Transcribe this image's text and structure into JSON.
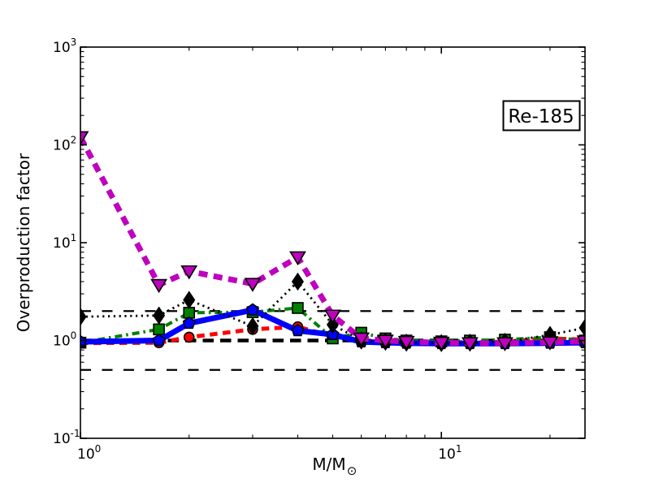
{
  "chart_data": {
    "type": "line",
    "title": "",
    "xlabel": "M/M",
    "xlabel_subscript": "⊙",
    "ylabel": "Overproduction factor",
    "xscale": "log",
    "yscale": "log",
    "xlim": [
      1,
      25
    ],
    "ylim": [
      0.1,
      1000
    ],
    "grid": false,
    "legend": "none",
    "annotation": {
      "label": "Re-185"
    },
    "x_ticks": [
      {
        "label": "10^0",
        "value": 1
      },
      {
        "label": "10^1",
        "value": 10
      }
    ],
    "y_ticks": [
      {
        "label": "10^3",
        "value": 1000
      },
      {
        "label": "10^2",
        "value": 100
      },
      {
        "label": "10^1",
        "value": 10
      },
      {
        "label": "10^0",
        "value": 1
      },
      {
        "label": "10^-1",
        "value": 0.1
      }
    ],
    "x": [
      1,
      1.65,
      2,
      3,
      4,
      5,
      6,
      7,
      8,
      10,
      12,
      15,
      20,
      25
    ],
    "series": [
      {
        "name": "red-dashed-circles",
        "color": "#ff0000",
        "linestyle": "dashed",
        "linewidth": 5,
        "dash": "9.5 6.5",
        "marker": "circle",
        "marker_size": 6,
        "values": [
          0.94,
          0.95,
          1.08,
          1.3,
          1.38,
          1.1,
          1.0,
          0.97,
          0.95,
          0.95,
          0.96,
          0.97,
          1.05,
          1.02
        ]
      },
      {
        "name": "green-dashdot-squares",
        "color": "#008000",
        "linestyle": "dashdot",
        "linewidth": 4,
        "dash": "9 5 2.5 5",
        "marker": "square",
        "marker_size": 6.5,
        "values": [
          0.95,
          1.3,
          1.92,
          1.95,
          2.15,
          1.05,
          1.2,
          1.05,
          1.0,
          0.98,
          1.0,
          1.02,
          1.08,
          1.0
        ]
      },
      {
        "name": "blue-solid-pentagons",
        "color": "#0000ff",
        "linestyle": "solid",
        "linewidth": 7,
        "dash": "",
        "marker": "pentagon",
        "marker_size": 7.5,
        "values": [
          0.97,
          1.0,
          1.5,
          2.05,
          1.26,
          1.15,
          0.97,
          0.95,
          0.94,
          0.93,
          0.93,
          0.93,
          0.94,
          0.95
        ]
      },
      {
        "name": "black-dotted-diamonds",
        "color": "#000000",
        "linestyle": "dotted",
        "linewidth": 2.8,
        "dash": "2.2 4.6",
        "marker": "diamond",
        "marker_size": 8,
        "values": [
          1.75,
          1.8,
          2.6,
          1.4,
          4.0,
          1.45,
          1.0,
          0.97,
          0.95,
          0.94,
          0.95,
          0.97,
          1.14,
          1.35
        ]
      },
      {
        "name": "magenta-dashed-triangles",
        "color": "#bf00bf",
        "linestyle": "dashed",
        "linewidth": 7,
        "dash": "11 7.5",
        "marker": "triangle-down",
        "marker_size": 9,
        "values": [
          120,
          3.7,
          5.1,
          3.8,
          7.1,
          1.8,
          1.05,
          1.0,
          0.97,
          0.95,
          0.94,
          0.94,
          0.96,
          0.98
        ]
      }
    ],
    "reference_lines": [
      {
        "y": 2,
        "color": "#000000",
        "linewidth": 2.3,
        "dash": "13 13.5"
      },
      {
        "y": 1,
        "color": "#000000",
        "linewidth": 4.5,
        "dash": "13.5 8"
      },
      {
        "y": 0.5,
        "color": "#000000",
        "linewidth": 2.3,
        "dash": "13 13.5"
      }
    ]
  }
}
